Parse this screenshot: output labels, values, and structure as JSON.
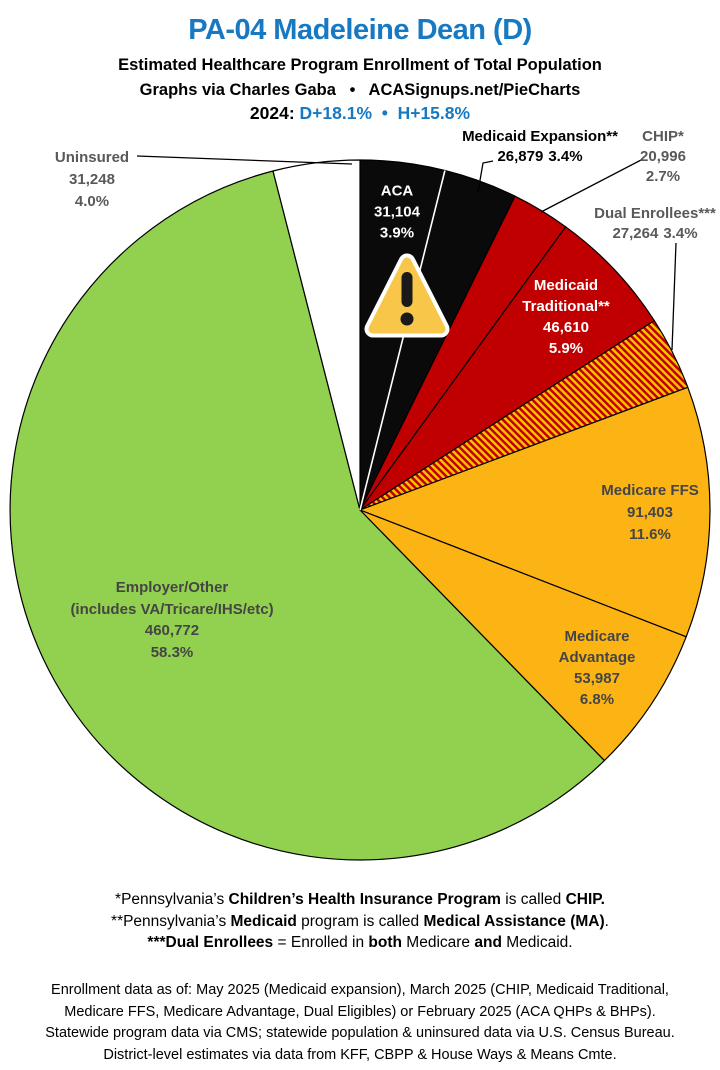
{
  "header": {
    "title": "PA-04 Madeleine Dean (D)",
    "subtitle1": "Estimated Healthcare Program Enrollment of Total Population",
    "subtitle2": "Graphs via Charles Gaba   •   ACASignups.net/PieCharts",
    "year_label": "2024:",
    "year_margins": " D+18.1%  •  H+15.8%",
    "accent_color": "#1779C2"
  },
  "chart_data": {
    "type": "pie",
    "title": "Estimated Healthcare Program Enrollment of Total Population",
    "direction": "clockwise",
    "start_angle_deg": 0,
    "legend_position": "labels-on-and-around-pie",
    "slices": [
      {
        "label": "ACA",
        "value": "31,104",
        "value_num": 31104,
        "pct": "3.9%",
        "pct_num": 3.9,
        "color": "#0A0A0A",
        "text_color": "#FFFFFF",
        "label_placement": "inside"
      },
      {
        "label": "Medicaid Expansion**",
        "value": "26,879",
        "value_num": 26879,
        "pct": "3.4%",
        "pct_num": 3.4,
        "color": "#0A0A0A",
        "text_color": "#000000",
        "label_placement": "outside"
      },
      {
        "label": "CHIP*",
        "value": "20,996",
        "value_num": 20996,
        "pct": "2.7%",
        "pct_num": 2.7,
        "color": "#C00000",
        "text_color": "#595959",
        "label_placement": "outside"
      },
      {
        "label": "Medicaid Traditional**",
        "value": "46,610",
        "value_num": 46610,
        "pct": "5.9%",
        "pct_num": 5.9,
        "color": "#C00000",
        "text_color": "#FFFFFF",
        "label_placement": "inside"
      },
      {
        "label": "Dual Enrollees***",
        "value": "27,264",
        "value_num": 27264,
        "pct": "3.4%",
        "pct_num": 3.4,
        "color": "#C00000",
        "hatch_color": "#FFC000",
        "text_color": "#595959",
        "label_placement": "outside"
      },
      {
        "label": "Medicare FFS",
        "value": "91,403",
        "value_num": 91403,
        "pct": "11.6%",
        "pct_num": 11.6,
        "color": "#FBB414",
        "text_color": "#454545",
        "label_placement": "inside"
      },
      {
        "label": "Medicare Advantage",
        "value": "53,987",
        "value_num": 53987,
        "pct": "6.8%",
        "pct_num": 6.8,
        "color": "#FBB414",
        "text_color": "#454545",
        "label_placement": "inside"
      },
      {
        "label": "Employer/Other",
        "sublabel": "(includes VA/Tricare/IHS/etc)",
        "value": "460,772",
        "value_num": 460772,
        "pct": "58.3%",
        "pct_num": 58.3,
        "color": "#92D050",
        "text_color": "#454545",
        "label_placement": "inside"
      },
      {
        "label": "Uninsured",
        "value": "31,248",
        "value_num": 31248,
        "pct": "4.0%",
        "pct_num": 4.0,
        "color": "#FFFFFF",
        "text_color": "#595959",
        "label_placement": "outside"
      }
    ],
    "annotations": [
      {
        "icon": "warning-triangle-icon",
        "on": "ACA / Medicaid Expansion slices",
        "fill": "#F8C649",
        "border": "#FFFFFF",
        "glyph_color": "#1A1A1A"
      }
    ]
  },
  "footnotes": {
    "line1": [
      "*Pennsylvania’s ",
      "Children’s Health Insurance Program",
      " is called ",
      "CHIP."
    ],
    "line2": [
      "**Pennsylvania’s ",
      "Medicaid",
      " program is called ",
      "Medical Assistance (MA)",
      "."
    ],
    "line3": [
      "***Dual Enrollees",
      " = Enrolled in ",
      "both",
      " Medicare ",
      "and",
      " Medicaid."
    ]
  },
  "attribution": {
    "line1": "Enrollment data as of: May 2025 (Medicaid expansion), March 2025 (CHIP, Medicaid Traditional,",
    "line2": "Medicare FFS, Medicare Advantage, Dual Eligibles) or February 2025 (ACA QHPs & BHPs).",
    "line3": "Statewide program data via CMS; statewide population & uninsured data via U.S. Census Bureau.",
    "line4": "District-level estimates via data from KFF, CBPP & House Ways & Means Cmte."
  }
}
